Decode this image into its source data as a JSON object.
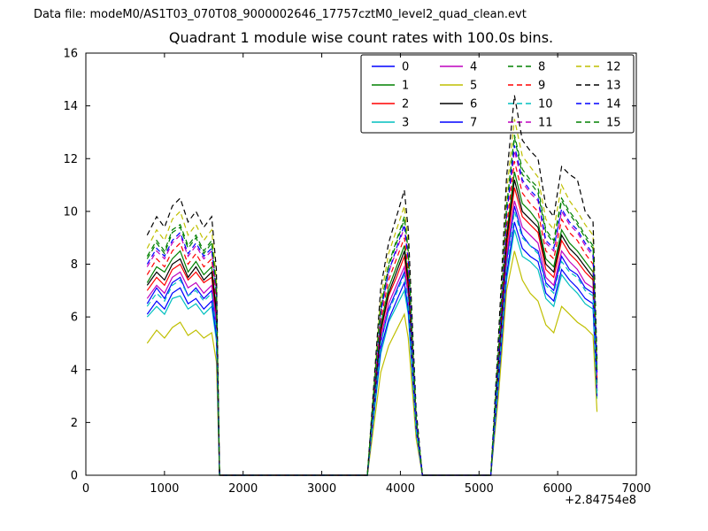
{
  "header": {
    "data_file_label": "Data file: modeM0/AS1T03_070T08_9000002646_17757cztM0_level2_quad_clean.evt"
  },
  "chart_data": {
    "type": "line",
    "title": "Quadrant 1 module wise count rates with 100.0s bins.",
    "xlabel": "",
    "ylabel": "",
    "xlim": [
      0,
      7000
    ],
    "ylim": [
      0,
      16
    ],
    "xticks": [
      0,
      1000,
      2000,
      3000,
      4000,
      5000,
      6000,
      7000
    ],
    "yticks": [
      0,
      2,
      4,
      6,
      8,
      10,
      12,
      14,
      16
    ],
    "x_offset_label": "+2.84754e8",
    "grid": false,
    "legend": {
      "position": "upper center",
      "columns": 4,
      "rows": 4
    },
    "x": [
      780,
      900,
      1000,
      1100,
      1200,
      1300,
      1400,
      1500,
      1600,
      1660,
      1700,
      3580,
      3650,
      3750,
      3850,
      3950,
      4050,
      4100,
      4200,
      4280,
      5150,
      5250,
      5350,
      5450,
      5550,
      5650,
      5750,
      5850,
      5950,
      6050,
      6150,
      6250,
      6350,
      6450,
      6500
    ],
    "series": [
      {
        "name": "0",
        "color": "#0000ff",
        "style": "solid",
        "values": [
          6.5,
          7.1,
          6.7,
          7.3,
          7.5,
          6.8,
          7.1,
          6.7,
          7.0,
          5.6,
          0,
          0,
          2.1,
          5.0,
          6.3,
          7.0,
          7.7,
          6.9,
          1.8,
          0,
          0,
          3.9,
          8.1,
          10.2,
          9.1,
          8.7,
          8.5,
          7.3,
          7.0,
          8.3,
          7.8,
          7.6,
          7.1,
          6.9,
          3.2
        ]
      },
      {
        "name": "1",
        "color": "#008000",
        "style": "solid",
        "values": [
          7.3,
          7.9,
          7.7,
          8.2,
          8.5,
          7.7,
          8.1,
          7.6,
          7.9,
          6.3,
          0,
          0,
          2.4,
          5.7,
          7.1,
          7.9,
          8.7,
          7.5,
          2.0,
          0,
          0,
          4.3,
          9.1,
          11.5,
          10.3,
          10.0,
          9.6,
          8.2,
          7.9,
          9.3,
          8.8,
          8.5,
          8.1,
          7.7,
          3.6
        ]
      },
      {
        "name": "2",
        "color": "#ff0000",
        "style": "solid",
        "values": [
          7.0,
          7.5,
          7.2,
          7.8,
          8.0,
          7.4,
          7.7,
          7.3,
          7.5,
          6.0,
          0,
          0,
          2.3,
          5.4,
          6.8,
          7.5,
          8.3,
          7.1,
          1.9,
          0,
          0,
          4.1,
          8.6,
          10.9,
          9.8,
          9.5,
          9.2,
          7.8,
          7.5,
          8.9,
          8.4,
          8.1,
          7.7,
          7.4,
          3.4
        ]
      },
      {
        "name": "3",
        "color": "#00bfbf",
        "style": "solid",
        "values": [
          6.0,
          6.4,
          6.1,
          6.7,
          6.8,
          6.3,
          6.5,
          6.1,
          6.4,
          5.1,
          0,
          0,
          1.9,
          4.6,
          5.8,
          6.4,
          7.0,
          6.1,
          1.6,
          0,
          0,
          3.5,
          7.4,
          9.3,
          8.3,
          8.1,
          7.8,
          6.7,
          6.4,
          7.6,
          7.2,
          6.9,
          6.5,
          6.3,
          2.9
        ]
      },
      {
        "name": "4",
        "color": "#bf00bf",
        "style": "solid",
        "values": [
          6.7,
          7.2,
          6.9,
          7.5,
          7.7,
          7.1,
          7.3,
          6.9,
          7.2,
          5.8,
          0,
          0,
          2.2,
          5.2,
          6.5,
          7.2,
          7.9,
          6.8,
          1.8,
          0,
          0,
          4.0,
          8.3,
          10.4,
          9.4,
          9.1,
          8.8,
          7.5,
          7.2,
          8.5,
          8.1,
          7.8,
          7.3,
          7.1,
          3.2
        ]
      },
      {
        "name": "5",
        "color": "#bfbf00",
        "style": "solid",
        "values": [
          5.0,
          5.5,
          5.2,
          5.6,
          5.8,
          5.3,
          5.5,
          5.2,
          5.4,
          4.3,
          0,
          0,
          1.6,
          3.9,
          4.9,
          5.5,
          6.1,
          5.2,
          1.4,
          0,
          0,
          3.1,
          7.0,
          8.5,
          7.4,
          6.9,
          6.6,
          5.7,
          5.4,
          6.4,
          6.1,
          5.8,
          5.6,
          5.3,
          2.4
        ]
      },
      {
        "name": "6",
        "color": "#000000",
        "style": "solid",
        "values": [
          7.2,
          7.7,
          7.4,
          8.0,
          8.2,
          7.5,
          7.9,
          7.4,
          7.7,
          6.2,
          0,
          0,
          2.3,
          5.5,
          6.9,
          7.7,
          8.5,
          7.3,
          1.9,
          0,
          0,
          4.2,
          8.9,
          11.2,
          10.0,
          9.7,
          9.4,
          8.0,
          7.7,
          9.1,
          8.6,
          8.3,
          7.9,
          7.5,
          3.5
        ]
      },
      {
        "name": "7",
        "color": "#0000ff",
        "style": "solid",
        "values": [
          6.1,
          6.6,
          6.3,
          6.9,
          7.1,
          6.5,
          6.7,
          6.3,
          6.6,
          5.3,
          0,
          0,
          2.0,
          4.8,
          5.9,
          6.6,
          7.3,
          6.3,
          1.7,
          0,
          0,
          3.6,
          7.6,
          9.6,
          8.6,
          8.3,
          8.1,
          6.9,
          6.6,
          7.8,
          7.4,
          7.1,
          6.7,
          6.5,
          3.0
        ]
      },
      {
        "name": "8",
        "color": "#008000",
        "style": "dashed",
        "values": [
          8.2,
          8.8,
          8.4,
          9.2,
          9.4,
          8.6,
          9.0,
          8.4,
          8.8,
          7.0,
          0,
          0,
          2.6,
          6.3,
          7.9,
          8.8,
          9.7,
          8.4,
          2.2,
          0,
          0,
          4.8,
          10.1,
          12.8,
          11.4,
          11.1,
          10.7,
          9.2,
          8.8,
          10.4,
          9.9,
          9.5,
          9.0,
          8.6,
          4.0
        ]
      },
      {
        "name": "9",
        "color": "#ff0000",
        "style": "dashed",
        "values": [
          7.6,
          8.2,
          7.9,
          8.5,
          8.8,
          8.0,
          8.4,
          7.9,
          8.2,
          6.6,
          0,
          0,
          2.5,
          5.9,
          7.4,
          8.2,
          9.0,
          7.8,
          2.1,
          0,
          0,
          4.5,
          9.4,
          11.9,
          10.7,
          10.3,
          10.0,
          8.5,
          8.2,
          9.7,
          9.2,
          8.9,
          8.4,
          8.0,
          3.7
        ]
      },
      {
        "name": "10",
        "color": "#00bfbf",
        "style": "dashed",
        "values": [
          6.4,
          6.9,
          6.6,
          7.2,
          7.4,
          6.8,
          7.0,
          6.6,
          6.9,
          5.5,
          0,
          0,
          2.1,
          5.0,
          6.2,
          6.9,
          7.6,
          6.6,
          1.7,
          0,
          0,
          3.8,
          7.9,
          10.0,
          9.0,
          8.7,
          8.4,
          7.2,
          6.9,
          8.1,
          7.7,
          7.5,
          7.0,
          6.8,
          3.1
        ]
      },
      {
        "name": "11",
        "color": "#bf00bf",
        "style": "dashed",
        "values": [
          7.9,
          8.5,
          8.2,
          8.8,
          9.1,
          8.3,
          8.7,
          8.2,
          8.5,
          6.8,
          0,
          0,
          2.6,
          6.1,
          7.7,
          8.5,
          9.4,
          8.1,
          2.1,
          0,
          0,
          4.7,
          9.8,
          12.3,
          11.1,
          10.7,
          10.4,
          8.8,
          8.5,
          10.0,
          9.5,
          9.2,
          8.7,
          8.3,
          3.8
        ]
      },
      {
        "name": "12",
        "color": "#bfbf00",
        "style": "dashed",
        "values": [
          8.6,
          9.3,
          8.9,
          9.7,
          10.0,
          9.1,
          9.5,
          8.9,
          9.3,
          7.4,
          0,
          0,
          2.8,
          6.7,
          8.4,
          9.3,
          10.2,
          8.8,
          2.3,
          0,
          0,
          5.1,
          10.7,
          13.5,
          12.1,
          11.7,
          11.3,
          9.7,
          9.3,
          11.0,
          10.4,
          10.0,
          9.5,
          9.1,
          4.2
        ]
      },
      {
        "name": "13",
        "color": "#000000",
        "style": "dashed",
        "values": [
          9.1,
          9.8,
          9.4,
          10.2,
          10.5,
          9.6,
          10.0,
          9.4,
          9.8,
          7.8,
          0,
          0,
          2.9,
          7.1,
          8.8,
          9.8,
          10.8,
          9.3,
          2.5,
          0,
          0,
          5.4,
          11.3,
          14.4,
          12.7,
          12.3,
          12.0,
          10.2,
          9.8,
          11.7,
          11.4,
          11.2,
          10.0,
          9.6,
          4.4
        ]
      },
      {
        "name": "14",
        "color": "#0000ff",
        "style": "dashed",
        "values": [
          8.0,
          8.6,
          8.3,
          8.9,
          9.2,
          8.4,
          8.8,
          8.3,
          8.6,
          6.9,
          0,
          0,
          2.6,
          6.2,
          7.7,
          8.6,
          9.5,
          8.2,
          2.2,
          0,
          0,
          4.7,
          9.9,
          12.5,
          11.2,
          10.8,
          10.5,
          8.9,
          8.6,
          10.1,
          9.6,
          9.3,
          8.8,
          8.4,
          3.9
        ]
      },
      {
        "name": "15",
        "color": "#008000",
        "style": "dashed",
        "values": [
          8.3,
          8.9,
          8.5,
          9.3,
          9.5,
          8.7,
          9.1,
          8.5,
          8.9,
          7.1,
          0,
          0,
          2.7,
          6.4,
          8.0,
          8.9,
          9.8,
          8.5,
          2.2,
          0,
          0,
          4.9,
          10.2,
          12.9,
          11.6,
          11.2,
          10.9,
          9.3,
          8.9,
          10.5,
          10.0,
          9.6,
          9.1,
          8.7,
          4.0
        ]
      }
    ]
  }
}
